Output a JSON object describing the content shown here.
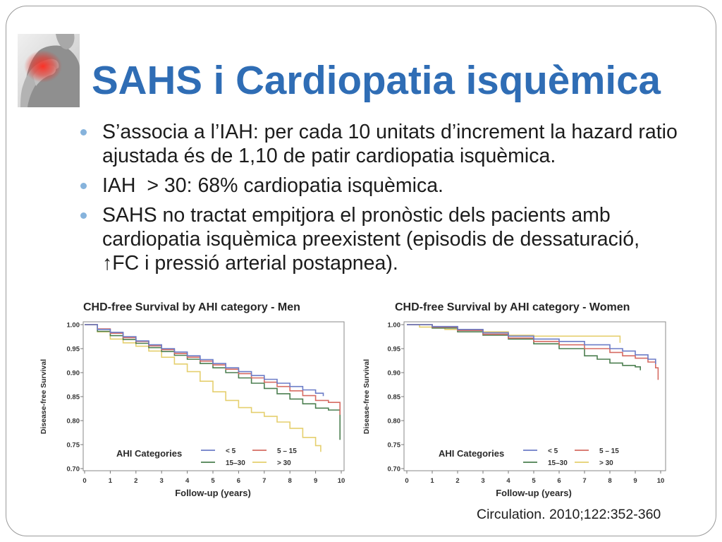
{
  "slide": {
    "title": "SAHS i Cardiopatia isquèmica",
    "photo_icon": "chest-pain-photo",
    "bullets": [
      {
        "lines": [
          "S’associa a l’IAH: per cada 10 unitats d’increment la hazard ratio",
          "ajustada és de 1,10 de patir cardiopatia isquèmica."
        ]
      },
      {
        "lines": [
          "IAH  > 30: 68% cardiopatia isquèmica."
        ]
      },
      {
        "lines": [
          "SAHS no tractat empitjora el pronòstic dels pacients amb",
          "cardiopatia isquèmica preexistent (episodis de dessaturació,",
          "↑FC i pressió arterial postapnea)."
        ]
      }
    ],
    "citation": "Circulation. 2010;122:352-360",
    "colors": {
      "title": "#2f6db5",
      "bullet": "#86b3dc",
      "border": "#9a9a9a"
    }
  },
  "chart_data": [
    {
      "type": "line",
      "line_style": "step",
      "title": "CHD-free Survival by AHI category - Men",
      "xlabel": "Follow-up (years)",
      "ylabel": "Disease-free Survival",
      "xlim": [
        0,
        10
      ],
      "ylim": [
        0.7,
        1.0
      ],
      "xticks": [
        "0",
        "1",
        "2",
        "3",
        "4",
        "5",
        "6",
        "7",
        "8",
        "9",
        "10"
      ],
      "yticks": [
        "1.00",
        "0.95",
        "0.90",
        "0.85",
        "0.80",
        "0.75",
        "0.70"
      ],
      "grid": false,
      "legend_title": "AHI Categories",
      "legend_position": "bottom",
      "series": [
        {
          "name": "< 5",
          "color": "#6b7cc7",
          "x": [
            0,
            0.5,
            1,
            1.5,
            2,
            2.5,
            3,
            3.5,
            4,
            4.5,
            5,
            5.5,
            6,
            6.5,
            7,
            7.5,
            8,
            8.5,
            9,
            9.3
          ],
          "y": [
            1.0,
            0.99,
            0.984,
            0.975,
            0.966,
            0.958,
            0.95,
            0.943,
            0.935,
            0.927,
            0.919,
            0.91,
            0.902,
            0.894,
            0.886,
            0.878,
            0.871,
            0.864,
            0.857,
            0.851
          ]
        },
        {
          "name": "5 – 15",
          "color": "#d66b62",
          "x": [
            0,
            0.5,
            1,
            1.5,
            2,
            2.5,
            3,
            3.5,
            4,
            4.5,
            5,
            5.5,
            6,
            6.5,
            7,
            7.5,
            8,
            8.5,
            9,
            9.5,
            9.9,
            9.95
          ],
          "y": [
            1.0,
            0.991,
            0.982,
            0.973,
            0.965,
            0.956,
            0.948,
            0.94,
            0.932,
            0.924,
            0.916,
            0.907,
            0.898,
            0.889,
            0.88,
            0.871,
            0.862,
            0.852,
            0.842,
            0.838,
            0.838,
            0.812
          ]
        },
        {
          "name": "15–30",
          "color": "#4c7f50",
          "x": [
            0,
            0.5,
            1,
            1.5,
            2,
            2.5,
            3,
            3.5,
            4,
            4.5,
            5,
            5.5,
            6,
            6.5,
            7,
            7.5,
            8,
            8.5,
            9,
            9.5,
            9.9,
            9.95
          ],
          "y": [
            1.0,
            0.986,
            0.977,
            0.969,
            0.961,
            0.952,
            0.944,
            0.936,
            0.928,
            0.919,
            0.91,
            0.9,
            0.889,
            0.878,
            0.867,
            0.856,
            0.845,
            0.835,
            0.826,
            0.822,
            0.822,
            0.76
          ]
        },
        {
          "name": "> 30",
          "color": "#e5cf6e",
          "x": [
            0,
            0.5,
            1,
            1.5,
            2,
            2.5,
            3,
            3.5,
            4,
            4.5,
            5,
            5.5,
            6,
            6.5,
            7,
            7.5,
            8,
            8.5,
            9,
            9.2
          ],
          "y": [
            1.0,
            0.985,
            0.97,
            0.962,
            0.955,
            0.945,
            0.932,
            0.918,
            0.902,
            0.882,
            0.86,
            0.842,
            0.827,
            0.817,
            0.809,
            0.797,
            0.784,
            0.765,
            0.748,
            0.735
          ]
        }
      ]
    },
    {
      "type": "line",
      "line_style": "step",
      "title": "CHD-free Survival by AHI category - Women",
      "xlabel": "Follow-up (years)",
      "ylabel": "Disease-free Survival",
      "xlim": [
        0,
        10
      ],
      "ylim": [
        0.7,
        1.0
      ],
      "xticks": [
        "0",
        "1",
        "2",
        "3",
        "4",
        "5",
        "6",
        "7",
        "8",
        "9",
        "10"
      ],
      "yticks": [
        "1.00",
        "0.95",
        "0.90",
        "0.85",
        "0.80",
        "0.75",
        "0.70"
      ],
      "grid": false,
      "legend_title": "AHI Categories",
      "legend_position": "bottom",
      "series": [
        {
          "name": "< 5",
          "color": "#6b7cc7",
          "x": [
            0,
            1,
            2,
            3,
            4,
            5,
            6,
            7,
            8,
            8.5,
            9,
            9.5,
            9.8
          ],
          "y": [
            1.0,
            0.996,
            0.99,
            0.983,
            0.976,
            0.97,
            0.965,
            0.958,
            0.95,
            0.945,
            0.937,
            0.928,
            0.918
          ]
        },
        {
          "name": "5 – 15",
          "color": "#d66b62",
          "x": [
            0,
            1,
            2,
            3,
            4,
            5,
            6,
            7,
            8,
            8.5,
            9,
            9.5,
            9.8,
            9.9
          ],
          "y": [
            1.0,
            0.995,
            0.988,
            0.98,
            0.972,
            0.965,
            0.958,
            0.95,
            0.942,
            0.935,
            0.93,
            0.922,
            0.91,
            0.885
          ]
        },
        {
          "name": "15–30",
          "color": "#4c7f50",
          "x": [
            0,
            1,
            2,
            3,
            4,
            5,
            6,
            7,
            7.5,
            8,
            8.5,
            9,
            9.2
          ],
          "y": [
            1.0,
            0.993,
            0.985,
            0.978,
            0.97,
            0.96,
            0.95,
            0.935,
            0.928,
            0.92,
            0.915,
            0.912,
            0.905
          ]
        },
        {
          "name": "> 30",
          "color": "#e5cf6e",
          "x": [
            0,
            0.5,
            1,
            1.5,
            2,
            3,
            4,
            5,
            6,
            7,
            8,
            8.3,
            8.4
          ],
          "y": [
            1.0,
            0.995,
            0.993,
            0.99,
            0.99,
            0.985,
            0.978,
            0.976,
            0.976,
            0.976,
            0.976,
            0.976,
            0.962
          ]
        }
      ]
    }
  ]
}
